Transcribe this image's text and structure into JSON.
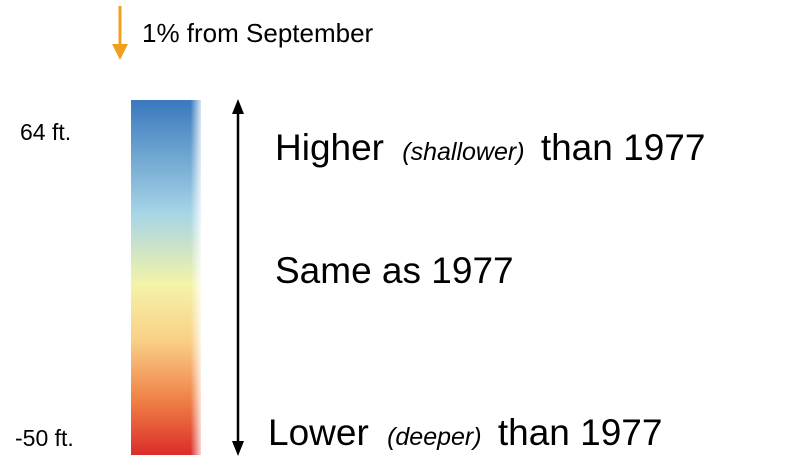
{
  "change": {
    "label": "1% from September"
  },
  "scale": {
    "max_label": "64 ft.",
    "min_label": "-50 ft."
  },
  "descriptions": [
    {
      "main": "Higher",
      "note": "(shallower)",
      "suffix": "than 1977"
    },
    {
      "main": "Same as 1977"
    },
    {
      "main": "Lower",
      "note": "(deeper)",
      "suffix": "than 1977"
    }
  ]
}
